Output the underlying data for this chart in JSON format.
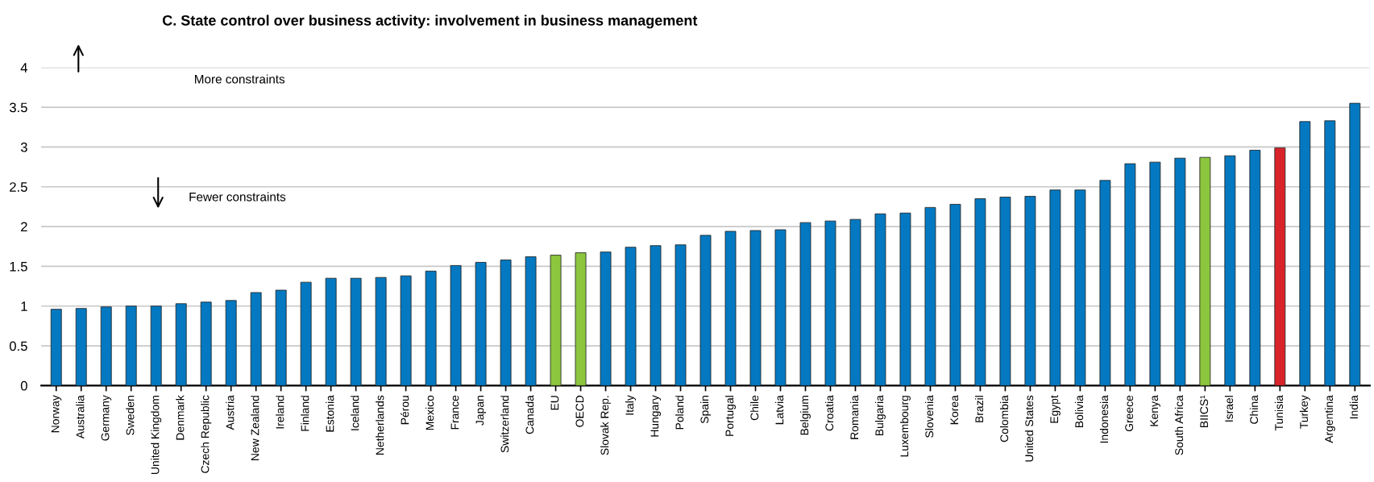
{
  "chart_data": {
    "type": "bar",
    "title": "C. State control over business activity: involvement in business management",
    "categories": [
      "Norway",
      "Australia",
      "Germany",
      "Sweden",
      "United Kingdom",
      "Denmark",
      "Czech Republic",
      "Austria",
      "New Zealand",
      "Ireland",
      "Finland",
      "Estonia",
      "Iceland",
      "Netherlands",
      "Pérou",
      "Mexico",
      "France",
      "Japan",
      "Switzerland",
      "Canada",
      "EU",
      "OECD",
      "Slovak Rep.",
      "Italy",
      "Hungary",
      "Poland",
      "Spain",
      "Portugal",
      "Chile",
      "Latvia",
      "Belgium",
      "Croatia",
      "Romania",
      "Bulgaria",
      "Luxembourg",
      "Slovenia",
      "Korea",
      "Brazil",
      "Colombia",
      "United States",
      "Egypt",
      "Bolivia",
      "Indonesia",
      "Greece",
      "Kenya",
      "South Africa",
      "BIICS¹",
      "Israel",
      "China",
      "Tunisia",
      "Turkey",
      "Argentina",
      "India"
    ],
    "values": [
      0.96,
      0.97,
      0.99,
      1.0,
      1.0,
      1.03,
      1.05,
      1.07,
      1.17,
      1.2,
      1.3,
      1.35,
      1.35,
      1.36,
      1.38,
      1.44,
      1.51,
      1.55,
      1.58,
      1.62,
      1.64,
      1.67,
      1.68,
      1.74,
      1.76,
      1.77,
      1.89,
      1.94,
      1.95,
      1.96,
      2.05,
      2.07,
      2.09,
      2.16,
      2.17,
      2.24,
      2.28,
      2.35,
      2.37,
      2.38,
      2.46,
      2.46,
      2.58,
      2.79,
      2.81,
      2.86,
      2.87,
      2.89,
      2.96,
      2.99,
      3.32,
      3.33,
      3.55
    ],
    "colors": [
      "#0479c1",
      "#0479c1",
      "#0479c1",
      "#0479c1",
      "#0479c1",
      "#0479c1",
      "#0479c1",
      "#0479c1",
      "#0479c1",
      "#0479c1",
      "#0479c1",
      "#0479c1",
      "#0479c1",
      "#0479c1",
      "#0479c1",
      "#0479c1",
      "#0479c1",
      "#0479c1",
      "#0479c1",
      "#0479c1",
      "#8cc63f",
      "#8cc63f",
      "#0479c1",
      "#0479c1",
      "#0479c1",
      "#0479c1",
      "#0479c1",
      "#0479c1",
      "#0479c1",
      "#0479c1",
      "#0479c1",
      "#0479c1",
      "#0479c1",
      "#0479c1",
      "#0479c1",
      "#0479c1",
      "#0479c1",
      "#0479c1",
      "#0479c1",
      "#0479c1",
      "#0479c1",
      "#0479c1",
      "#0479c1",
      "#0479c1",
      "#0479c1",
      "#0479c1",
      "#8cc63f",
      "#0479c1",
      "#0479c1",
      "#d9232a",
      "#0479c1",
      "#0479c1",
      "#0479c1"
    ],
    "ylim": [
      0,
      4
    ],
    "yticks": [
      0,
      {
        "value": 0.5,
        "label": "0.5"
      },
      1,
      {
        "value": 1.5,
        "label": "1.5"
      },
      2,
      {
        "value": 2.5,
        "label": "2.5"
      },
      3,
      {
        "value": 3.5,
        "label": "3.5"
      },
      4
    ],
    "grid": "y",
    "annotations": [
      "More constraints",
      "Fewer constraints"
    ]
  }
}
